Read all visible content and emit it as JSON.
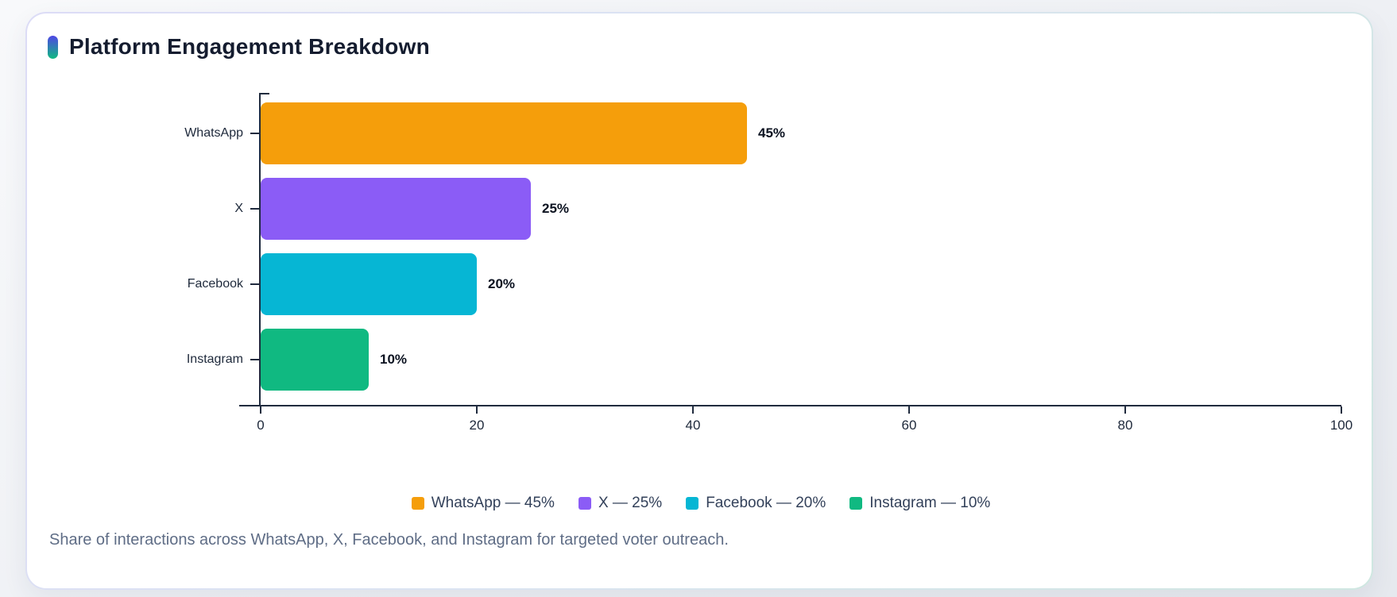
{
  "chart_data": {
    "type": "bar",
    "orientation": "horizontal",
    "title": "Platform Engagement Breakdown",
    "categories": [
      "WhatsApp",
      "X",
      "Facebook",
      "Instagram"
    ],
    "values": [
      45,
      25,
      20,
      10
    ],
    "value_labels": [
      "45%",
      "25%",
      "20%",
      "10%"
    ],
    "colors": [
      "#F59E0B",
      "#8B5CF6",
      "#06B6D4",
      "#10B981"
    ],
    "xlabel": "",
    "ylabel": "",
    "xlim": [
      0,
      100
    ],
    "x_ticks": [
      0,
      20,
      40,
      60,
      80,
      100
    ],
    "grid": false,
    "legend_position": "bottom"
  },
  "legend": {
    "items": [
      {
        "label": "WhatsApp — 45%",
        "color": "#F59E0B"
      },
      {
        "label": "X — 25%",
        "color": "#8B5CF6"
      },
      {
        "label": "Facebook — 20%",
        "color": "#06B6D4"
      },
      {
        "label": "Instagram — 10%",
        "color": "#10B981"
      }
    ]
  },
  "caption": {
    "text": "Share of interactions across WhatsApp, X, Facebook, and Instagram for targeted voter outreach."
  },
  "accent": {
    "gradient_start": "#4F46E5",
    "gradient_end": "#10B981",
    "axis_color": "#202B3E"
  }
}
